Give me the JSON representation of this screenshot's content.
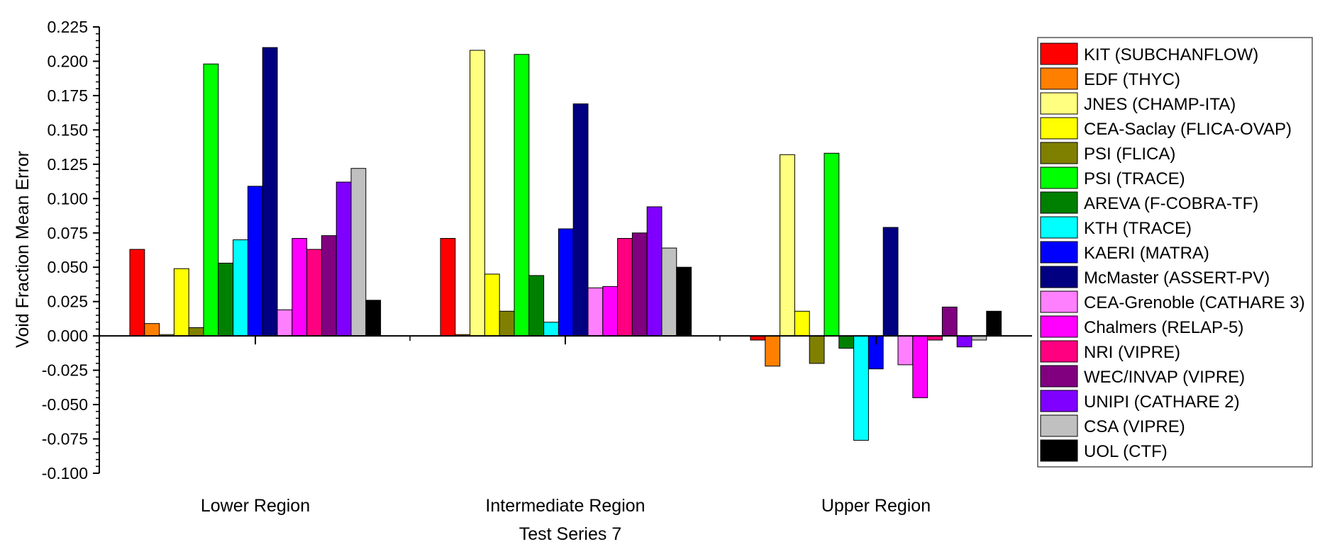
{
  "chart_data": {
    "type": "bar",
    "xlabel": "Test Series 7",
    "ylabel": "Void Fraction Mean Error",
    "ylim": [
      -0.1,
      0.225
    ],
    "yticks": [
      "-0.100",
      "-0.075",
      "-0.050",
      "-0.025",
      "0.000",
      "0.025",
      "0.050",
      "0.075",
      "0.100",
      "0.125",
      "0.150",
      "0.175",
      "0.200",
      "0.225"
    ],
    "categories": [
      "Lower Region",
      "Intermediate Region",
      "Upper Region"
    ],
    "legend_position": "right",
    "series": [
      {
        "name": "KIT (SUBCHANFLOW)",
        "color": "#ff0000",
        "values": [
          0.063,
          0.071,
          -0.003
        ]
      },
      {
        "name": "EDF (THYC)",
        "color": "#ff8000",
        "values": [
          0.009,
          0.001,
          -0.022
        ]
      },
      {
        "name": "JNES (CHAMP-ITA)",
        "color": "#ffff80",
        "values": [
          0.001,
          0.208,
          0.132
        ]
      },
      {
        "name": "CEA-Saclay (FLICA-OVAP)",
        "color": "#ffff00",
        "values": [
          0.049,
          0.045,
          0.018
        ]
      },
      {
        "name": "PSI (FLICA)",
        "color": "#808000",
        "values": [
          0.006,
          0.018,
          -0.02
        ]
      },
      {
        "name": "PSI (TRACE)",
        "color": "#00ff00",
        "values": [
          0.198,
          0.205,
          0.133
        ]
      },
      {
        "name": "AREVA (F-COBRA-TF)",
        "color": "#008000",
        "values": [
          0.053,
          0.044,
          -0.009
        ]
      },
      {
        "name": "KTH (TRACE)",
        "color": "#00ffff",
        "values": [
          0.07,
          0.01,
          -0.076
        ]
      },
      {
        "name": "KAERI (MATRA)",
        "color": "#0000ff",
        "values": [
          0.109,
          0.078,
          -0.024
        ]
      },
      {
        "name": "McMaster (ASSERT-PV)",
        "color": "#000080",
        "values": [
          0.21,
          0.169,
          0.079
        ]
      },
      {
        "name": "CEA-Grenoble (CATHARE 3)",
        "color": "#ff80ff",
        "values": [
          0.019,
          0.035,
          -0.021
        ]
      },
      {
        "name": "Chalmers (RELAP-5)",
        "color": "#ff00ff",
        "values": [
          0.071,
          0.036,
          -0.045
        ]
      },
      {
        "name": "NRI (VIPRE)",
        "color": "#ff0080",
        "values": [
          0.063,
          0.071,
          -0.003
        ]
      },
      {
        "name": "WEC/INVAP (VIPRE)",
        "color": "#800080",
        "values": [
          0.073,
          0.075,
          0.021
        ]
      },
      {
        "name": "UNIPI (CATHARE 2)",
        "color": "#8000ff",
        "values": [
          0.112,
          0.094,
          -0.008
        ]
      },
      {
        "name": "CSA (VIPRE)",
        "color": "#c0c0c0",
        "values": [
          0.122,
          0.064,
          -0.003
        ]
      },
      {
        "name": "UOL (CTF)",
        "color": "#000000",
        "values": [
          0.026,
          0.05,
          0.018
        ]
      }
    ]
  }
}
